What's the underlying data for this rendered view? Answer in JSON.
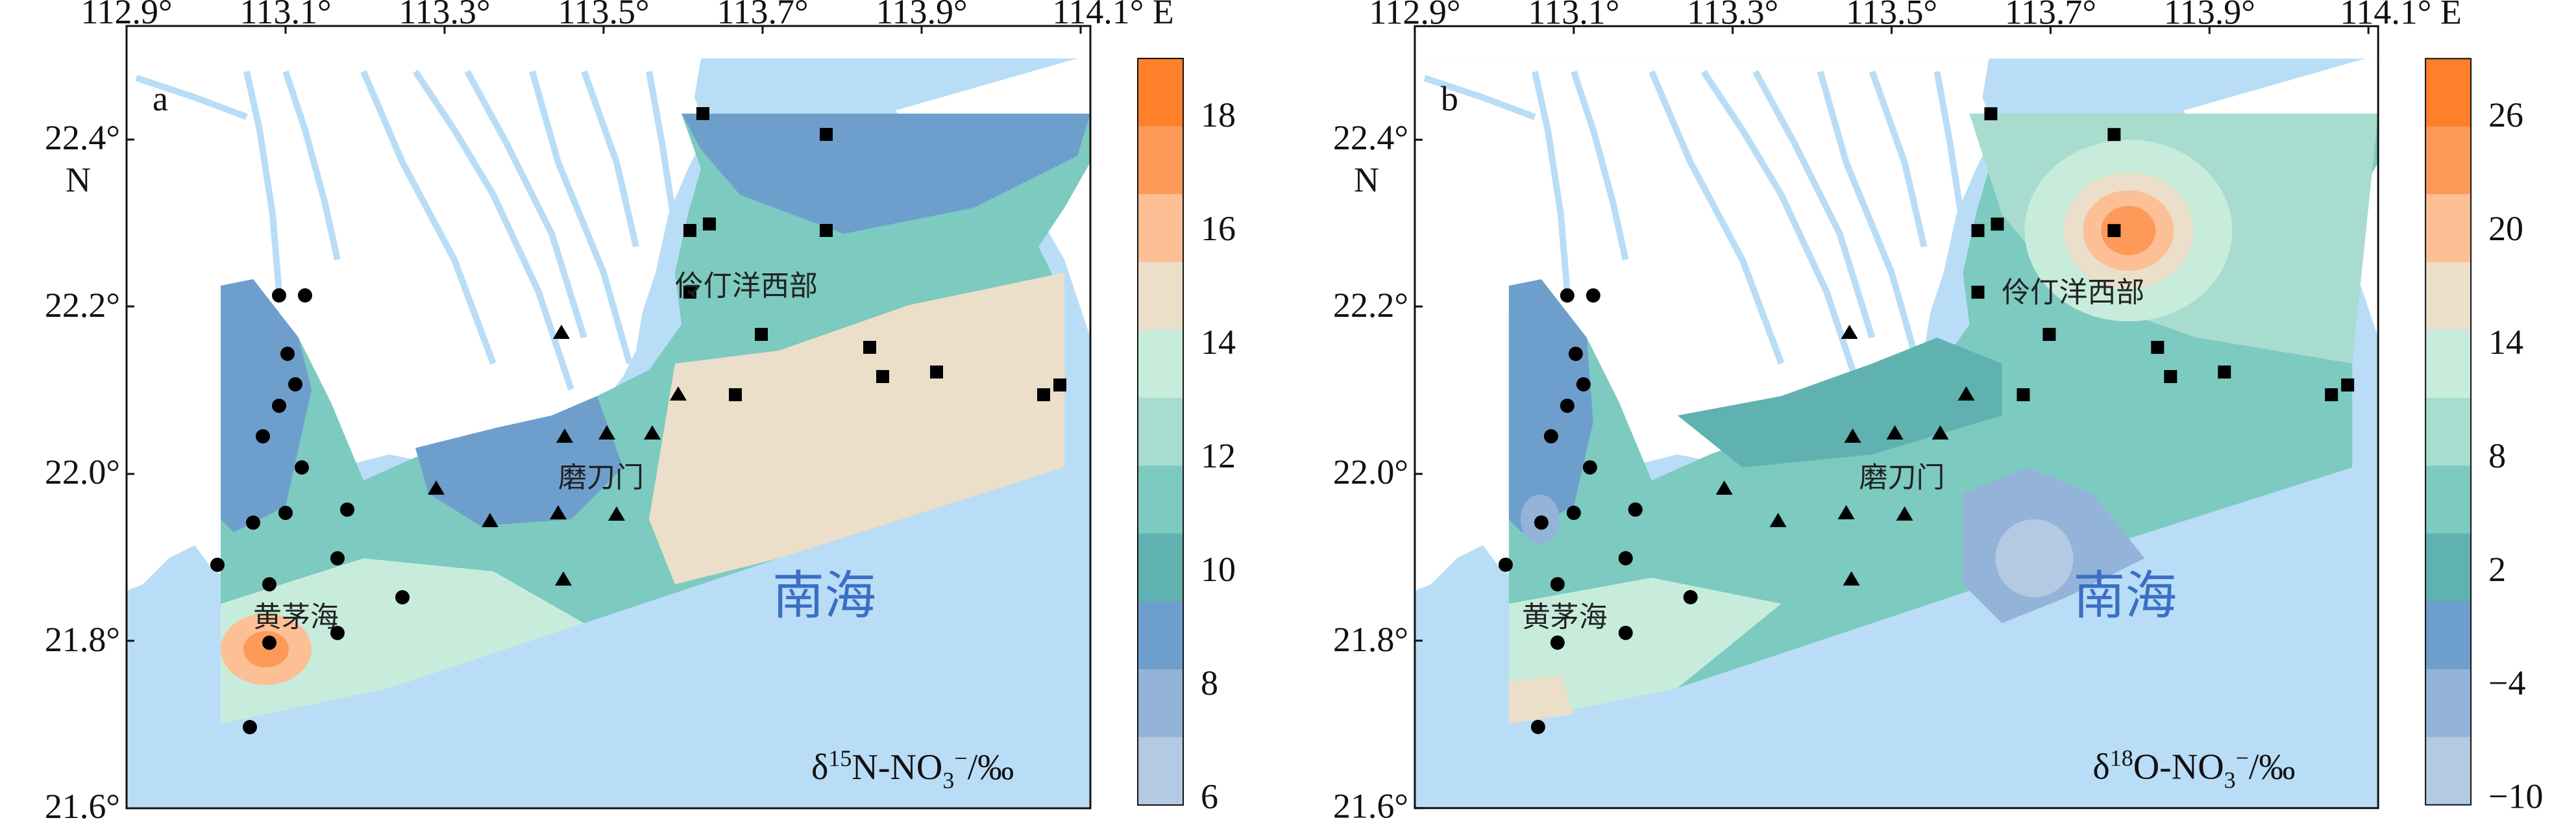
{
  "panels": [
    {
      "id": "a",
      "letter": "a",
      "x_ticks": [
        "112.9°",
        "113.1°",
        "113.3°",
        "113.5°",
        "113.7°",
        "113.9°",
        "114.1° E"
      ],
      "y_ticks": [
        "22.4°",
        "22.2°",
        "22.0°",
        "21.8°",
        "21.6°"
      ],
      "y_unit": "N",
      "place_labels": {
        "lingding": "伶仃洋西部",
        "modaomen": "磨刀门",
        "huangmao": "黄茅海",
        "nanhai": "南海"
      },
      "title": {
        "delta": "δ",
        "sup": "15",
        "rest": "N-NO",
        "sub": "3",
        "sup2": "−",
        "unit": "/‰"
      },
      "colorbar": {
        "labels": [
          "18",
          "16",
          "14",
          "12",
          "10",
          "8",
          "6"
        ],
        "colors": [
          "#ff7f2a",
          "#fd9a59",
          "#fdbf95",
          "#ebdfc9",
          "#c8ecdc",
          "#a8dccf",
          "#7ccac0",
          "#5fb2b0",
          "#6e9fcc",
          "#93b4d8",
          "#b4cae2"
        ]
      }
    },
    {
      "id": "b",
      "letter": "b",
      "x_ticks": [
        "112.9°",
        "113.1°",
        "113.3°",
        "113.5°",
        "113.7°",
        "113.9°",
        "114.1° E"
      ],
      "y_ticks": [
        "22.4°",
        "22.2°",
        "22.0°",
        "21.8°",
        "21.6°"
      ],
      "y_unit": "N",
      "place_labels": {
        "lingding": "伶仃洋西部",
        "modaomen": "磨刀门",
        "huangmao": "黄茅海",
        "nanhai": "南海"
      },
      "title": {
        "delta": "δ",
        "sup": "18",
        "rest": "O-NO",
        "sub": "3",
        "sup2": "−",
        "unit": "/‰"
      },
      "colorbar": {
        "labels": [
          "26",
          "20",
          "14",
          "8",
          "2",
          "−4",
          "−10"
        ],
        "colors": [
          "#ff7f2a",
          "#fd9a59",
          "#fdbf95",
          "#ebdfc9",
          "#c8ecdc",
          "#a8dccf",
          "#7ccac0",
          "#5fb2b0",
          "#6e9fcc",
          "#93b4d8",
          "#b4cae2"
        ]
      }
    }
  ]
}
